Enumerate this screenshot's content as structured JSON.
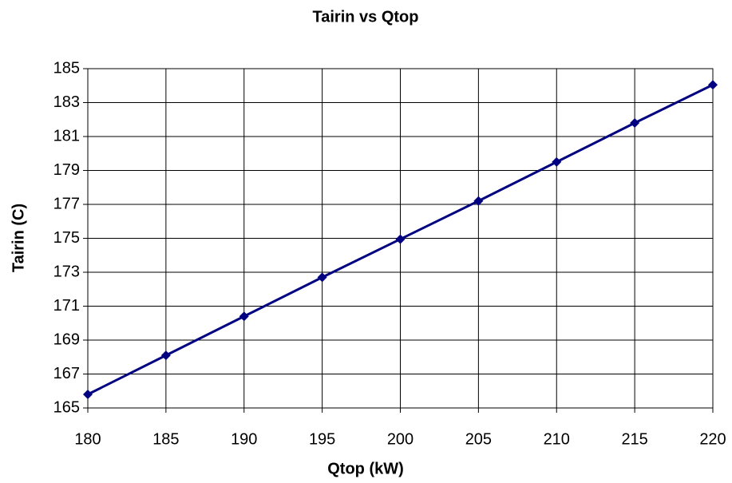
{
  "chart_data": {
    "type": "line",
    "title": "Tairin vs Qtop",
    "x_label": "Qtop (kW)",
    "y_label": "Tairin (C)",
    "x": [
      180,
      185,
      190,
      195,
      200,
      205,
      210,
      215,
      220
    ],
    "series": [
      {
        "name": "Tairin",
        "color": "#000080",
        "values": [
          165.8,
          168.1,
          170.4,
          172.7,
          174.95,
          177.2,
          179.5,
          181.8,
          184.05
        ]
      }
    ],
    "xlim": [
      180,
      220
    ],
    "xticks": [
      180,
      185,
      190,
      195,
      200,
      205,
      210,
      215,
      220
    ],
    "ylim": [
      165,
      185
    ],
    "yticks": [
      165,
      167,
      169,
      171,
      173,
      175,
      177,
      179,
      181,
      183,
      185
    ],
    "grid": true,
    "marker": "diamond"
  }
}
